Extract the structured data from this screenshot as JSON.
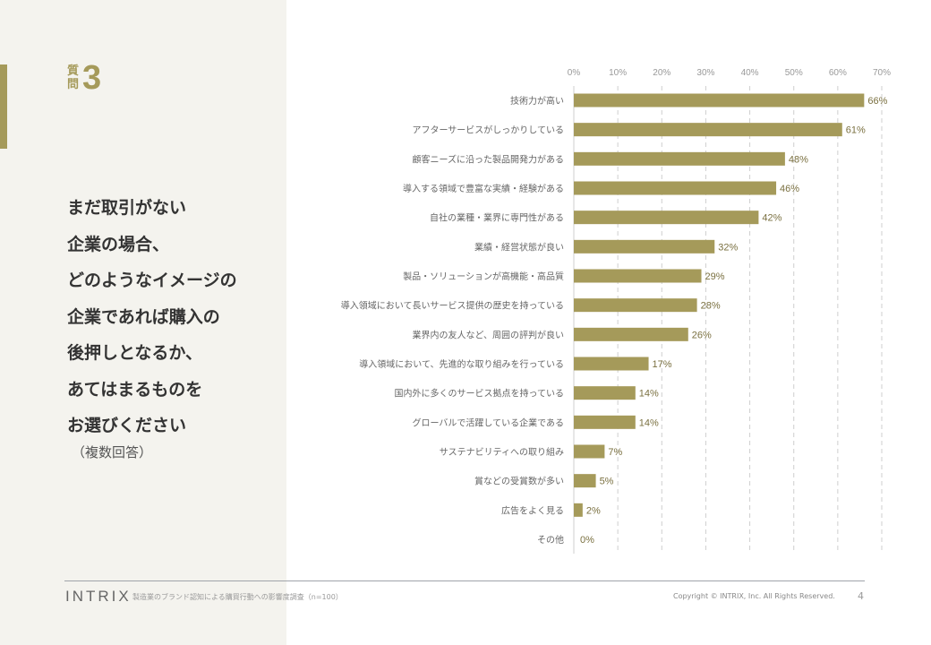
{
  "header": {
    "question_label": "質問",
    "question_number": "3"
  },
  "question": {
    "lines": [
      "まだ取引がない",
      "企業の場合、",
      "どのようなイメージの",
      "企業であれば購入の",
      "後押しとなるか、",
      "あてはまるものを",
      "お選びください"
    ],
    "note": "（複数回答）"
  },
  "chart_data": {
    "type": "bar",
    "orientation": "horizontal",
    "categories": [
      "技術力が高い",
      "アフターサービスがしっかりしている",
      "顧客ニーズに沿った製品開発力がある",
      "導入する領域で豊富な実績・経験がある",
      "自社の業種・業界に専門性がある",
      "業績・経営状態が良い",
      "製品・ソリューションが高機能・高品質",
      "導入領域において長いサービス提供の歴史を持っている",
      "業界内の友人など、周囲の評判が良い",
      "導入領域において、先進的な取り組みを行っている",
      "国内外に多くのサービス拠点を持っている",
      "グローバルで活躍している企業である",
      "サステナビリティへの取り組み",
      "賞などの受賞数が多い",
      "広告をよく見る",
      "その他"
    ],
    "values": [
      66,
      61,
      48,
      46,
      42,
      32,
      29,
      28,
      26,
      17,
      14,
      14,
      7,
      5,
      2,
      0
    ],
    "value_labels": [
      "66%",
      "61%",
      "48%",
      "46%",
      "42%",
      "32%",
      "29%",
      "28%",
      "26%",
      "17%",
      "14%",
      "14%",
      "7%",
      "5%",
      "2%",
      "0%"
    ],
    "xlim": [
      0,
      70
    ],
    "xticks": [
      "0%",
      "10%",
      "20%",
      "30%",
      "40%",
      "50%",
      "60%",
      "70%"
    ],
    "grid": true,
    "color": "#a59a5a"
  },
  "footer": {
    "logo": "INTRIX",
    "survey": "製造業のブランド認知による購買行動への影響度調査（n=100）",
    "copyright": "Copyright © INTRIX, Inc. All Rights Reserved.",
    "page": "4"
  }
}
